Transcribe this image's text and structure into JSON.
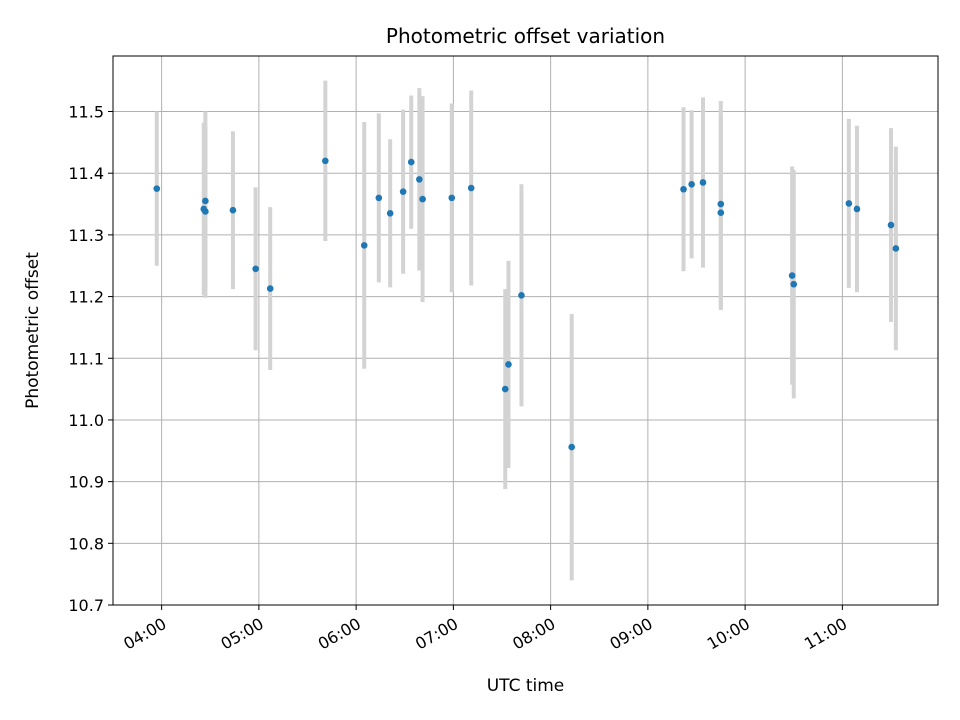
{
  "chart_data": {
    "type": "scatter",
    "title": "Photometric offset variation",
    "xlabel": "UTC time",
    "ylabel": "Photometric offset",
    "ylim": [
      10.7,
      11.59
    ],
    "xlim": [
      "03:30",
      "11:59"
    ],
    "grid": true,
    "x_ticks": [
      "04:00",
      "05:00",
      "06:00",
      "07:00",
      "08:00",
      "09:00",
      "10:00",
      "11:00"
    ],
    "y_ticks": [
      10.7,
      10.8,
      10.9,
      11.0,
      11.1,
      11.2,
      11.3,
      11.4,
      11.5
    ],
    "colors": {
      "marker": "#1f77b4",
      "errorbar": "#d3d3d3",
      "grid": "#b0b0b0"
    },
    "series": [
      {
        "x": [
          "03:57",
          "04:26",
          "04:27",
          "04:27",
          "04:44",
          "04:58",
          "05:07",
          "05:41",
          "06:05",
          "06:14",
          "06:21",
          "06:29",
          "06:34",
          "06:39",
          "06:41",
          "06:59",
          "07:11",
          "07:32",
          "07:34",
          "07:42",
          "08:13",
          "09:22",
          "09:27",
          "09:34",
          "09:45",
          "09:45",
          "10:29",
          "10:30",
          "11:04",
          "11:09",
          "11:30",
          "11:33"
        ],
        "y": [
          11.375,
          11.342,
          11.338,
          11.355,
          11.34,
          11.245,
          11.213,
          11.42,
          11.283,
          11.36,
          11.335,
          11.37,
          11.418,
          11.39,
          11.358,
          11.36,
          11.376,
          11.05,
          11.09,
          11.202,
          10.956,
          11.374,
          11.382,
          11.385,
          11.336,
          11.35,
          11.234,
          11.22,
          11.351,
          11.342,
          11.316,
          11.278
        ],
        "err": [
          0.125,
          0.14,
          0.14,
          0.145,
          0.128,
          0.132,
          0.132,
          0.13,
          0.2,
          0.137,
          0.12,
          0.133,
          0.108,
          0.148,
          0.167,
          0.153,
          0.158,
          0.162,
          0.168,
          0.18,
          0.216,
          0.133,
          0.12,
          0.138,
          0.158,
          0.167,
          0.177,
          0.185,
          0.137,
          0.135,
          0.157,
          0.165
        ]
      }
    ]
  }
}
